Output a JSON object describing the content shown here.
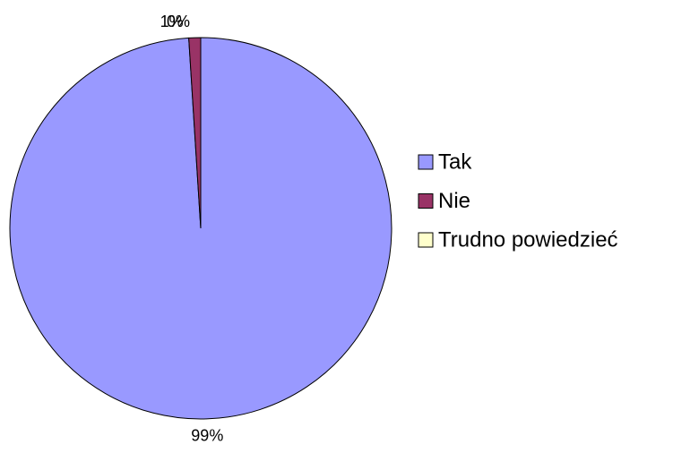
{
  "chart_data": {
    "type": "pie",
    "categories": [
      "Tak",
      "Nie",
      "Trudno powiedzieć"
    ],
    "values": [
      99,
      1,
      0
    ],
    "value_labels": [
      "99%",
      "1%",
      "0%"
    ],
    "colors": [
      "#9999ff",
      "#993366",
      "#ffffcc"
    ],
    "legend": "right"
  }
}
